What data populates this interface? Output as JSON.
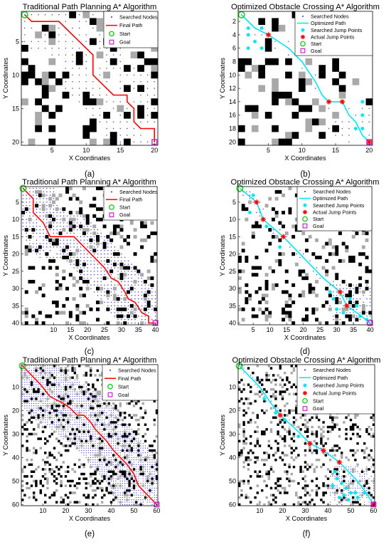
{
  "figure": {
    "panels": [
      {
        "letter": "(a)",
        "title": "Traditional Path Planning A* Algorithm",
        "xlabel": "X Coordinates",
        "ylabel": "Y Coordinates",
        "grid": 20,
        "legend": [
          "Searched Nodes",
          "Final Path",
          "Start",
          "Goal"
        ]
      },
      {
        "letter": "(b)",
        "title": "Optimized Obstacle Crossing A* Algorithm",
        "xlabel": "X Coordinates",
        "ylabel": "Y Coordinates",
        "grid": 20,
        "legend": [
          "Searched Nodes",
          "Optimized Path",
          "Searched Jump Points",
          "Actual Jump Points",
          "Start",
          "Goal"
        ]
      },
      {
        "letter": "(c)",
        "title": "Traditional Path Planning A* Algorithm",
        "xlabel": "X Coordinates",
        "ylabel": "Y Coordinates",
        "grid": 40,
        "legend": [
          "Searched Nodes",
          "Final Path",
          "Start",
          "Goal"
        ]
      },
      {
        "letter": "(d)",
        "title": "Optimized Obstacle Crossing A* Algorithm",
        "xlabel": "X Coordinates",
        "ylabel": "Y Coordinates",
        "grid": 40,
        "legend": [
          "Searched Nodes",
          "Optimized Path",
          "Searched Jump Points",
          "Actual Jump Points",
          "Start",
          "Goal"
        ]
      },
      {
        "letter": "(e)",
        "title": "Traditional Path Planning A* Algorithm",
        "xlabel": "X Coordinates",
        "ylabel": "Y Coordinates",
        "grid": 60,
        "legend": [
          "Searched Nodes",
          "Final Path",
          "Start",
          "Goal"
        ]
      },
      {
        "letter": "(f)",
        "title": "Optimized Obstacle Crossing A* Algorithm",
        "xlabel": "X Coordinates",
        "ylabel": "Y Coordinates",
        "grid": 60,
        "legend": [
          "Searched Nodes",
          "Optimized Path",
          "Searched Jump Points",
          "Actual Jump Points",
          "Start",
          "Goal"
        ]
      }
    ]
  },
  "colors": {
    "final_path": "#ff0000",
    "optimized_path": "#00e5ee",
    "searched_nodes": "#2b2bcc",
    "start": "#22cc22",
    "goal": "#cc22cc",
    "obstacle": "#000000",
    "obstacle_light": "#a9a9a9"
  },
  "legend_markers": {
    "Searched Nodes": "dot",
    "Final Path": "red-line",
    "Optimized Path": "cyan-line",
    "Searched Jump Points": "cyan-star",
    "Actual Jump Points": "red-star",
    "Start": "green-circle",
    "Goal": "magenta-square"
  },
  "chart_data": [
    {
      "type": "scatter",
      "title": "Traditional Path Planning A* Algorithm",
      "xlabel": "X Coordinates",
      "ylabel": "Y Coordinates",
      "xlim": [
        0.5,
        20.5
      ],
      "ylim": [
        0.5,
        20.5
      ],
      "y_reversed": true,
      "xticks": [
        5,
        10,
        15,
        20
      ],
      "yticks": [
        5,
        10,
        15,
        20
      ],
      "start": [
        1,
        1
      ],
      "goal": [
        20,
        20
      ],
      "path": [
        [
          1,
          1
        ],
        [
          2,
          2
        ],
        [
          6,
          2
        ],
        [
          7,
          3
        ],
        [
          8,
          4
        ],
        [
          9,
          5
        ],
        [
          10,
          6
        ],
        [
          11,
          7
        ],
        [
          11,
          10
        ],
        [
          12,
          11
        ],
        [
          13,
          12
        ],
        [
          14,
          13
        ],
        [
          16,
          13
        ],
        [
          16,
          14
        ],
        [
          17,
          15
        ],
        [
          17,
          17
        ],
        [
          18,
          18
        ],
        [
          20,
          18
        ],
        [
          20,
          20
        ]
      ],
      "series": [
        {
          "name": "Searched Nodes"
        },
        {
          "name": "Final Path"
        },
        {
          "name": "Start"
        },
        {
          "name": "Goal"
        }
      ]
    },
    {
      "type": "scatter",
      "title": "Optimized Obstacle Crossing A* Algorithm",
      "xlabel": "X Coordinates",
      "ylabel": "Y Coordinates",
      "xlim": [
        0.5,
        20.5
      ],
      "ylim": [
        0.5,
        20.5
      ],
      "y_reversed": true,
      "xticks": [
        5,
        10,
        15,
        20
      ],
      "yticks": [
        2,
        4,
        6,
        8,
        10,
        12,
        14,
        16,
        18,
        20
      ],
      "start": [
        1,
        1
      ],
      "goal": [
        20,
        20
      ],
      "path": [
        [
          1,
          1
        ],
        [
          3,
          3
        ],
        [
          5,
          4
        ],
        [
          8,
          6
        ],
        [
          10,
          8
        ],
        [
          12,
          11
        ],
        [
          13,
          13
        ],
        [
          14,
          14
        ],
        [
          16,
          14
        ],
        [
          17,
          16
        ],
        [
          18,
          17
        ],
        [
          19,
          19
        ],
        [
          20,
          20
        ]
      ],
      "actual_jump_points": [
        [
          5,
          4
        ],
        [
          14,
          14
        ],
        [
          16,
          14
        ],
        [
          20,
          20
        ]
      ],
      "searched_jump_points": [
        [
          2,
          3
        ],
        [
          2,
          4
        ],
        [
          3,
          5
        ],
        [
          4,
          6
        ],
        [
          4,
          3
        ],
        [
          2,
          6
        ],
        [
          19,
          14
        ],
        [
          19,
          16
        ],
        [
          18,
          18
        ],
        [
          19,
          18
        ]
      ],
      "series": [
        {
          "name": "Searched Nodes"
        },
        {
          "name": "Optimized Path"
        },
        {
          "name": "Searched Jump Points"
        },
        {
          "name": "Actual Jump Points"
        },
        {
          "name": "Start"
        },
        {
          "name": "Goal"
        }
      ]
    },
    {
      "type": "scatter",
      "title": "Traditional Path Planning A* Algorithm",
      "xlabel": "X Coordinates",
      "ylabel": "Y Coordinates",
      "xlim": [
        0.5,
        40.5
      ],
      "ylim": [
        0.5,
        40.5
      ],
      "y_reversed": true,
      "xticks": [
        10,
        15,
        20,
        25,
        30,
        35,
        40
      ],
      "yticks": [
        5,
        10,
        15,
        20,
        25,
        30,
        35,
        40
      ],
      "start": [
        1,
        1
      ],
      "goal": [
        40,
        40
      ],
      "path": [
        [
          1,
          1
        ],
        [
          4,
          4
        ],
        [
          4,
          8
        ],
        [
          7,
          11
        ],
        [
          9,
          15
        ],
        [
          16,
          15
        ],
        [
          18,
          17
        ],
        [
          21,
          20
        ],
        [
          25,
          24
        ],
        [
          27,
          27
        ],
        [
          29,
          28
        ],
        [
          31,
          31
        ],
        [
          32,
          33
        ],
        [
          34,
          34
        ],
        [
          36,
          37
        ],
        [
          38,
          38
        ],
        [
          38,
          40
        ],
        [
          40,
          40
        ]
      ],
      "series": [
        {
          "name": "Searched Nodes"
        },
        {
          "name": "Final Path"
        },
        {
          "name": "Start"
        },
        {
          "name": "Goal"
        }
      ]
    },
    {
      "type": "scatter",
      "title": "Optimized Obstacle Crossing A* Algorithm",
      "xlabel": "X Coordinates",
      "ylabel": "Y Coordinates",
      "xlim": [
        0.5,
        40.5
      ],
      "ylim": [
        0.5,
        40.5
      ],
      "y_reversed": true,
      "xticks": [
        5,
        10,
        15,
        20,
        25,
        30,
        35,
        40
      ],
      "yticks": [
        5,
        10,
        15,
        20,
        25,
        30,
        35,
        40
      ],
      "start": [
        1,
        1
      ],
      "goal": [
        40,
        40
      ],
      "path": [
        [
          1,
          1
        ],
        [
          6,
          5
        ],
        [
          8,
          10
        ],
        [
          14,
          15
        ],
        [
          20,
          21
        ],
        [
          26,
          27
        ],
        [
          31,
          31
        ],
        [
          33,
          35
        ],
        [
          36,
          37
        ],
        [
          40,
          40
        ]
      ],
      "actual_jump_points": [
        [
          6,
          5
        ],
        [
          8,
          10
        ],
        [
          14,
          15
        ],
        [
          31,
          31
        ],
        [
          33,
          35
        ]
      ],
      "searched_jump_points": [
        [
          5,
          3
        ],
        [
          4,
          8
        ],
        [
          9,
          12
        ],
        [
          13,
          18
        ],
        [
          29,
          33
        ],
        [
          30,
          36
        ],
        [
          32,
          37
        ],
        [
          34,
          33
        ],
        [
          36,
          35
        ],
        [
          37,
          38
        ],
        [
          39,
          39
        ],
        [
          28,
          31
        ]
      ],
      "series": [
        {
          "name": "Searched Nodes"
        },
        {
          "name": "Optimized Path"
        },
        {
          "name": "Searched Jump Points"
        },
        {
          "name": "Actual Jump Points"
        },
        {
          "name": "Start"
        },
        {
          "name": "Goal"
        }
      ]
    },
    {
      "type": "scatter",
      "title": "Traditional Path Planning A* Algorithm",
      "xlabel": "X Coordinates",
      "ylabel": "Y Coordinates",
      "xlim": [
        0.5,
        60.5
      ],
      "ylim": [
        0.5,
        60.5
      ],
      "y_reversed": true,
      "xticks": [
        10,
        20,
        30,
        40,
        50,
        60
      ],
      "yticks": [
        10,
        20,
        30,
        40,
        50,
        60
      ],
      "start": [
        1,
        1
      ],
      "goal": [
        60,
        60
      ],
      "path": [
        [
          1,
          1
        ],
        [
          5,
          5
        ],
        [
          9,
          9
        ],
        [
          13,
          14
        ],
        [
          19,
          17
        ],
        [
          22,
          19
        ],
        [
          25,
          22
        ],
        [
          28,
          22
        ],
        [
          31,
          25
        ],
        [
          33,
          28
        ],
        [
          35,
          30
        ],
        [
          38,
          33
        ],
        [
          41,
          37
        ],
        [
          44,
          40
        ],
        [
          47,
          43
        ],
        [
          50,
          47
        ],
        [
          52,
          52
        ],
        [
          55,
          55
        ],
        [
          58,
          58
        ],
        [
          60,
          60
        ]
      ],
      "series": [
        {
          "name": "Searched Nodes"
        },
        {
          "name": "Final Path"
        },
        {
          "name": "Start"
        },
        {
          "name": "Goal"
        }
      ]
    },
    {
      "type": "scatter",
      "title": "Optimized Obstacle Crossing A* Algorithm",
      "xlabel": "X Coordinates",
      "ylabel": "Y Coordinates",
      "xlim": [
        0.5,
        60.5
      ],
      "ylim": [
        0.5,
        60.5
      ],
      "y_reversed": true,
      "xticks": [
        10,
        20,
        30,
        40,
        50,
        60
      ],
      "yticks": [
        10,
        20,
        30,
        40,
        50,
        60
      ],
      "start": [
        1,
        1
      ],
      "goal": [
        60,
        60
      ],
      "path": [
        [
          1,
          1
        ],
        [
          10,
          10
        ],
        [
          15,
          17
        ],
        [
          19,
          22
        ],
        [
          27,
          29
        ],
        [
          32,
          34
        ],
        [
          38,
          37
        ],
        [
          45,
          42
        ],
        [
          52,
          49
        ],
        [
          56,
          54
        ],
        [
          60,
          60
        ]
      ],
      "actual_jump_points": [
        [
          19,
          22
        ],
        [
          32,
          34
        ],
        [
          38,
          37
        ],
        [
          45,
          42
        ],
        [
          60,
          60
        ]
      ],
      "searched_jump_points": [
        [
          12,
          15
        ],
        [
          17,
          21
        ],
        [
          21,
          24
        ],
        [
          27,
          31
        ],
        [
          43,
          46
        ],
        [
          44,
          49
        ],
        [
          46,
          51
        ],
        [
          48,
          53
        ],
        [
          50,
          55
        ],
        [
          47,
          56
        ],
        [
          52,
          55
        ],
        [
          53,
          57
        ],
        [
          45,
          57
        ],
        [
          42,
          52
        ],
        [
          49,
          58
        ],
        [
          56,
          55
        ]
      ],
      "series": [
        {
          "name": "Searched Nodes"
        },
        {
          "name": "Optimized Path"
        },
        {
          "name": "Searched Jump Points"
        },
        {
          "name": "Actual Jump Points"
        },
        {
          "name": "Start"
        },
        {
          "name": "Goal"
        }
      ]
    }
  ]
}
